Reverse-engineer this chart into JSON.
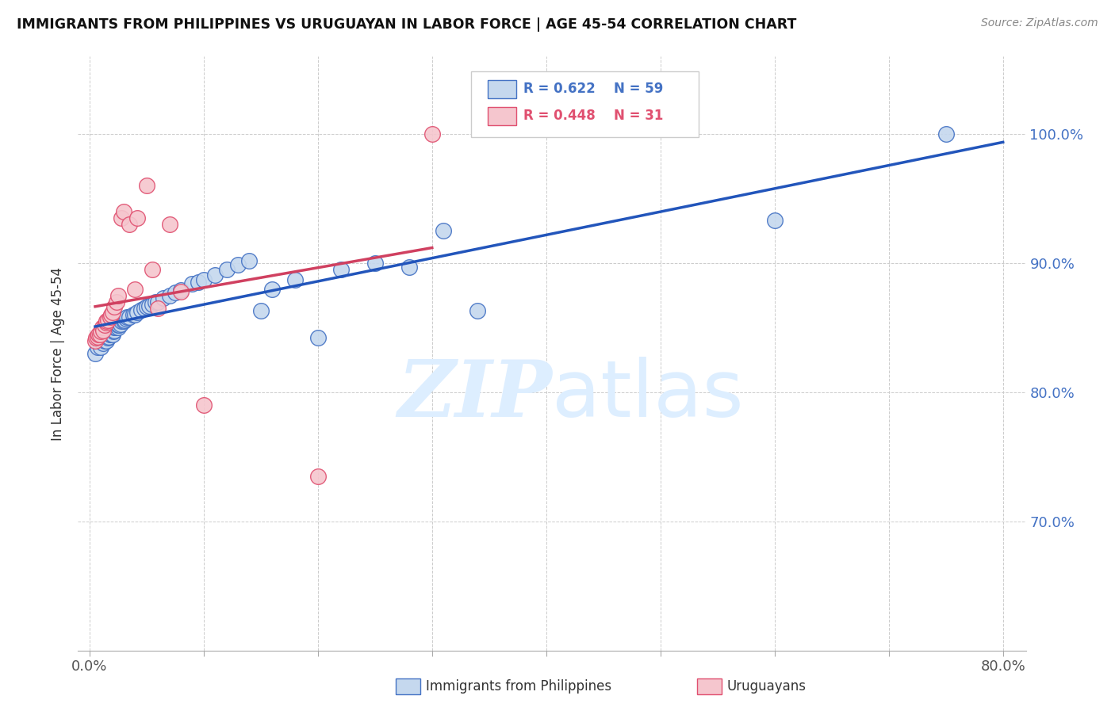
{
  "title": "IMMIGRANTS FROM PHILIPPINES VS URUGUAYAN IN LABOR FORCE | AGE 45-54 CORRELATION CHART",
  "source": "Source: ZipAtlas.com",
  "ylabel": "In Labor Force | Age 45-54",
  "xlim": [
    -0.01,
    0.82
  ],
  "ylim": [
    0.6,
    1.06
  ],
  "xtick_positions": [
    0.0,
    0.1,
    0.2,
    0.3,
    0.4,
    0.5,
    0.6,
    0.7,
    0.8
  ],
  "xticklabels_show": {
    "0.0": "0.0%",
    "0.8": "80.0%"
  },
  "ytick_positions": [
    0.7,
    0.8,
    0.9,
    1.0
  ],
  "yticklabels": [
    "70.0%",
    "80.0%",
    "90.0%",
    "100.0%"
  ],
  "blue_r": "0.622",
  "blue_n": "59",
  "pink_r": "0.448",
  "pink_n": "31",
  "blue_color": "#c5d8ee",
  "blue_edge_color": "#4472c4",
  "pink_color": "#f5c6ce",
  "pink_edge_color": "#e05070",
  "blue_line_color": "#2255bb",
  "pink_line_color": "#d04060",
  "watermark_zip": "ZIP",
  "watermark_atlas": "atlas",
  "watermark_color": "#ddeeff",
  "blue_points_x": [
    0.005,
    0.007,
    0.01,
    0.01,
    0.012,
    0.013,
    0.015,
    0.015,
    0.016,
    0.017,
    0.018,
    0.019,
    0.02,
    0.021,
    0.022,
    0.022,
    0.023,
    0.025,
    0.025,
    0.026,
    0.027,
    0.028,
    0.03,
    0.031,
    0.032,
    0.033,
    0.035,
    0.038,
    0.04,
    0.042,
    0.045,
    0.048,
    0.05,
    0.052,
    0.055,
    0.058,
    0.06,
    0.065,
    0.07,
    0.075,
    0.08,
    0.09,
    0.095,
    0.1,
    0.11,
    0.12,
    0.13,
    0.14,
    0.15,
    0.16,
    0.18,
    0.2,
    0.22,
    0.25,
    0.28,
    0.31,
    0.34,
    0.6,
    0.75
  ],
  "blue_points_y": [
    0.83,
    0.835,
    0.835,
    0.84,
    0.838,
    0.84,
    0.84,
    0.845,
    0.842,
    0.843,
    0.845,
    0.845,
    0.845,
    0.847,
    0.848,
    0.85,
    0.85,
    0.85,
    0.852,
    0.852,
    0.853,
    0.855,
    0.855,
    0.856,
    0.857,
    0.858,
    0.858,
    0.86,
    0.86,
    0.862,
    0.864,
    0.865,
    0.866,
    0.867,
    0.868,
    0.87,
    0.87,
    0.873,
    0.875,
    0.877,
    0.879,
    0.884,
    0.885,
    0.887,
    0.891,
    0.895,
    0.899,
    0.902,
    0.863,
    0.88,
    0.887,
    0.842,
    0.895,
    0.9,
    0.897,
    0.925,
    0.863,
    0.933,
    1.0
  ],
  "pink_points_x": [
    0.005,
    0.006,
    0.007,
    0.008,
    0.009,
    0.01,
    0.011,
    0.012,
    0.013,
    0.015,
    0.015,
    0.016,
    0.018,
    0.019,
    0.02,
    0.022,
    0.024,
    0.025,
    0.028,
    0.03,
    0.035,
    0.04,
    0.042,
    0.05,
    0.055,
    0.06,
    0.07,
    0.08,
    0.1,
    0.2,
    0.3
  ],
  "pink_points_y": [
    0.84,
    0.842,
    0.843,
    0.845,
    0.845,
    0.847,
    0.85,
    0.848,
    0.852,
    0.854,
    0.855,
    0.856,
    0.858,
    0.86,
    0.862,
    0.866,
    0.87,
    0.875,
    0.935,
    0.94,
    0.93,
    0.88,
    0.935,
    0.96,
    0.895,
    0.865,
    0.93,
    0.878,
    0.79,
    0.735,
    1.0
  ]
}
